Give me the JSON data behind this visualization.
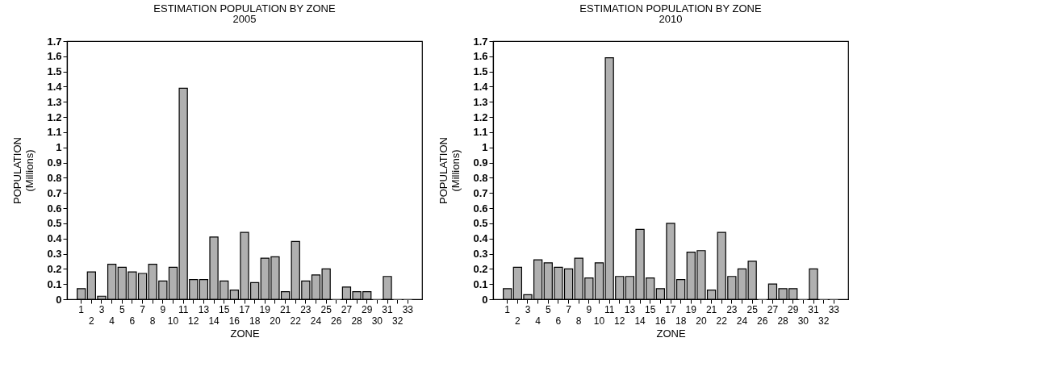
{
  "chart_data": [
    {
      "type": "bar",
      "title": "ESTIMATION POPULATION BY ZONE",
      "subtitle": "2005",
      "xlabel": "ZONE",
      "ylabel": "POPULATION\n(Millions)",
      "categories": [
        "1",
        "2",
        "3",
        "4",
        "5",
        "6",
        "7",
        "8",
        "9",
        "10",
        "11",
        "12",
        "13",
        "14",
        "15",
        "16",
        "17",
        "18",
        "19",
        "20",
        "21",
        "22",
        "23",
        "24",
        "25",
        "26",
        "27",
        "28",
        "29",
        "30",
        "31",
        "32",
        "33"
      ],
      "values": [
        0.07,
        0.18,
        0.02,
        0.23,
        0.21,
        0.18,
        0.17,
        0.23,
        0.12,
        0.21,
        1.39,
        0.13,
        0.13,
        0.41,
        0.12,
        0.06,
        0.44,
        0.11,
        0.27,
        0.28,
        0.05,
        0.38,
        0.12,
        0.16,
        0.2,
        0,
        0.08,
        0.05,
        0.05,
        0,
        0.15,
        0,
        0
      ],
      "color": "#b0b0b0",
      "ylim": [
        0,
        1.7
      ],
      "yticks": [
        0,
        0.1,
        0.2,
        0.3,
        0.4,
        0.5,
        0.6,
        0.7,
        0.8,
        0.9,
        1,
        1.1,
        1.2,
        1.3,
        1.4,
        1.5,
        1.6,
        1.7
      ],
      "grid": false
    },
    {
      "type": "bar",
      "title": "ESTIMATION POPULATION BY ZONE",
      "subtitle": "2010",
      "xlabel": "ZONE",
      "ylabel": "POPULATION\n(Millions)",
      "categories": [
        "1",
        "2",
        "3",
        "4",
        "5",
        "6",
        "7",
        "8",
        "9",
        "10",
        "11",
        "12",
        "13",
        "14",
        "15",
        "16",
        "17",
        "18",
        "19",
        "20",
        "21",
        "22",
        "23",
        "24",
        "25",
        "26",
        "27",
        "28",
        "29",
        "30",
        "31",
        "32",
        "33"
      ],
      "values": [
        0.07,
        0.21,
        0.03,
        0.26,
        0.24,
        0.21,
        0.2,
        0.27,
        0.14,
        0.24,
        1.59,
        0.15,
        0.15,
        0.46,
        0.14,
        0.07,
        0.5,
        0.13,
        0.31,
        0.32,
        0.06,
        0.44,
        0.15,
        0.2,
        0.25,
        0,
        0.1,
        0.07,
        0.07,
        0,
        0.2,
        0,
        0
      ],
      "color": "#b0b0b0",
      "ylim": [
        0,
        1.7
      ],
      "yticks": [
        0,
        0.1,
        0.2,
        0.3,
        0.4,
        0.5,
        0.6,
        0.7,
        0.8,
        0.9,
        1,
        1.1,
        1.2,
        1.3,
        1.4,
        1.5,
        1.6,
        1.7
      ],
      "grid": false
    }
  ]
}
